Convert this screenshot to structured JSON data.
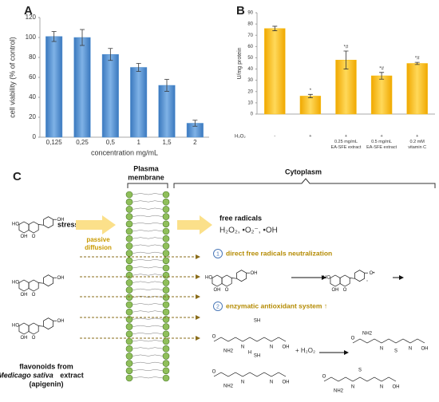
{
  "chart_data": [
    {
      "type": "bar",
      "panel": "A",
      "categories": [
        "0,125",
        "0,25",
        "0,5",
        "1",
        "1,5",
        "2"
      ],
      "values": [
        101,
        100,
        83,
        70,
        52,
        14
      ],
      "errors": [
        5,
        8,
        6,
        4,
        6,
        3
      ],
      "ylim": [
        0,
        120
      ],
      "yticks": [
        0,
        20,
        40,
        60,
        80,
        100,
        120
      ],
      "ylabel": "cell viability (% of control)",
      "xlabel": "concentration mg/mL",
      "color": "#4f8fd0"
    },
    {
      "type": "bar",
      "panel": "B",
      "categories": [
        "-",
        "+",
        "+\n0.25 mg/mL\nEA-SFE extract",
        "+\n0.5 mg/mL\nEA-SFE extract",
        "+\n0.2 mM\nvitamin C"
      ],
      "row_label": "H₂O₂",
      "values": [
        76,
        16,
        48,
        34,
        45
      ],
      "errors": [
        2,
        1.5,
        8,
        3,
        1
      ],
      "annotations": [
        null,
        "*",
        "*#",
        "*#",
        "*#"
      ],
      "ylim": [
        0,
        90
      ],
      "yticks": [
        0,
        10,
        20,
        30,
        40,
        50,
        60,
        70,
        80,
        90
      ],
      "ylabel": "U/mg protein",
      "color": "#f7bd12"
    }
  ],
  "diagram": {
    "panel": "C",
    "membrane_label": [
      "Plasma",
      "membrane"
    ],
    "cytoplasm_label": "Cytoplasm",
    "stress_factor": "stress factor",
    "free_radicals": "free radicals",
    "radical_species": "H₂O₂, •O₂⁻, •OH",
    "passive_diffusion": [
      "passive",
      "diffusion"
    ],
    "steps": [
      {
        "number": "1",
        "label": "direct free radicals neutralization"
      },
      {
        "number": "2",
        "label": "enzymatic antioxidant system ↑"
      }
    ],
    "reactant": "+ H₂O₂",
    "caption": [
      "flavonoids from",
      "Medicago sativa",
      "extract",
      "(apigenin)"
    ],
    "atoms": {
      "ho": "HO",
      "oh": "OH",
      "o": "O",
      "radical": "O•",
      "sh": "SH",
      "nh2": "NH2",
      "n": "N",
      "h": "H",
      "s": "S"
    }
  }
}
